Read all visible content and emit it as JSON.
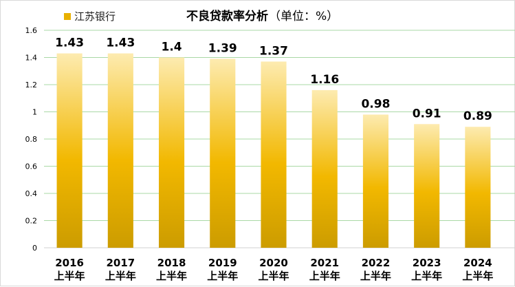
{
  "chart_data": {
    "type": "bar",
    "title": "不良贷款率分析",
    "title_unit": "（单位：%）",
    "categories": [
      [
        "2016",
        "上半年"
      ],
      [
        "2017",
        "上半年"
      ],
      [
        "2018",
        "上半年"
      ],
      [
        "2019",
        "上半年"
      ],
      [
        "2020",
        "上半年"
      ],
      [
        "2021",
        "上半年"
      ],
      [
        "2022",
        "上半年"
      ],
      [
        "2023",
        "上半年"
      ],
      [
        "2024",
        "上半年"
      ]
    ],
    "series": [
      {
        "name": "江苏银行",
        "values": [
          1.43,
          1.43,
          1.4,
          1.39,
          1.37,
          1.16,
          0.98,
          0.91,
          0.89
        ],
        "data_labels": [
          "1.43",
          "1.43",
          "1.4",
          "1.39",
          "1.37",
          "1.16",
          "0.98",
          "0.91",
          "0.89"
        ]
      }
    ],
    "ylim": [
      0,
      1.6
    ],
    "yticks": [
      "0",
      "0.2",
      "0.4",
      "0.6",
      "0.8",
      "1",
      "1.2",
      "1.4",
      "1.6"
    ],
    "grid": true,
    "legend_position": "top-left",
    "colors": {
      "bar_top": "#fdebb0",
      "bar_mid": "#f2b800",
      "bar_bottom": "#cc9c00",
      "grid": "#a9d8a4"
    }
  }
}
